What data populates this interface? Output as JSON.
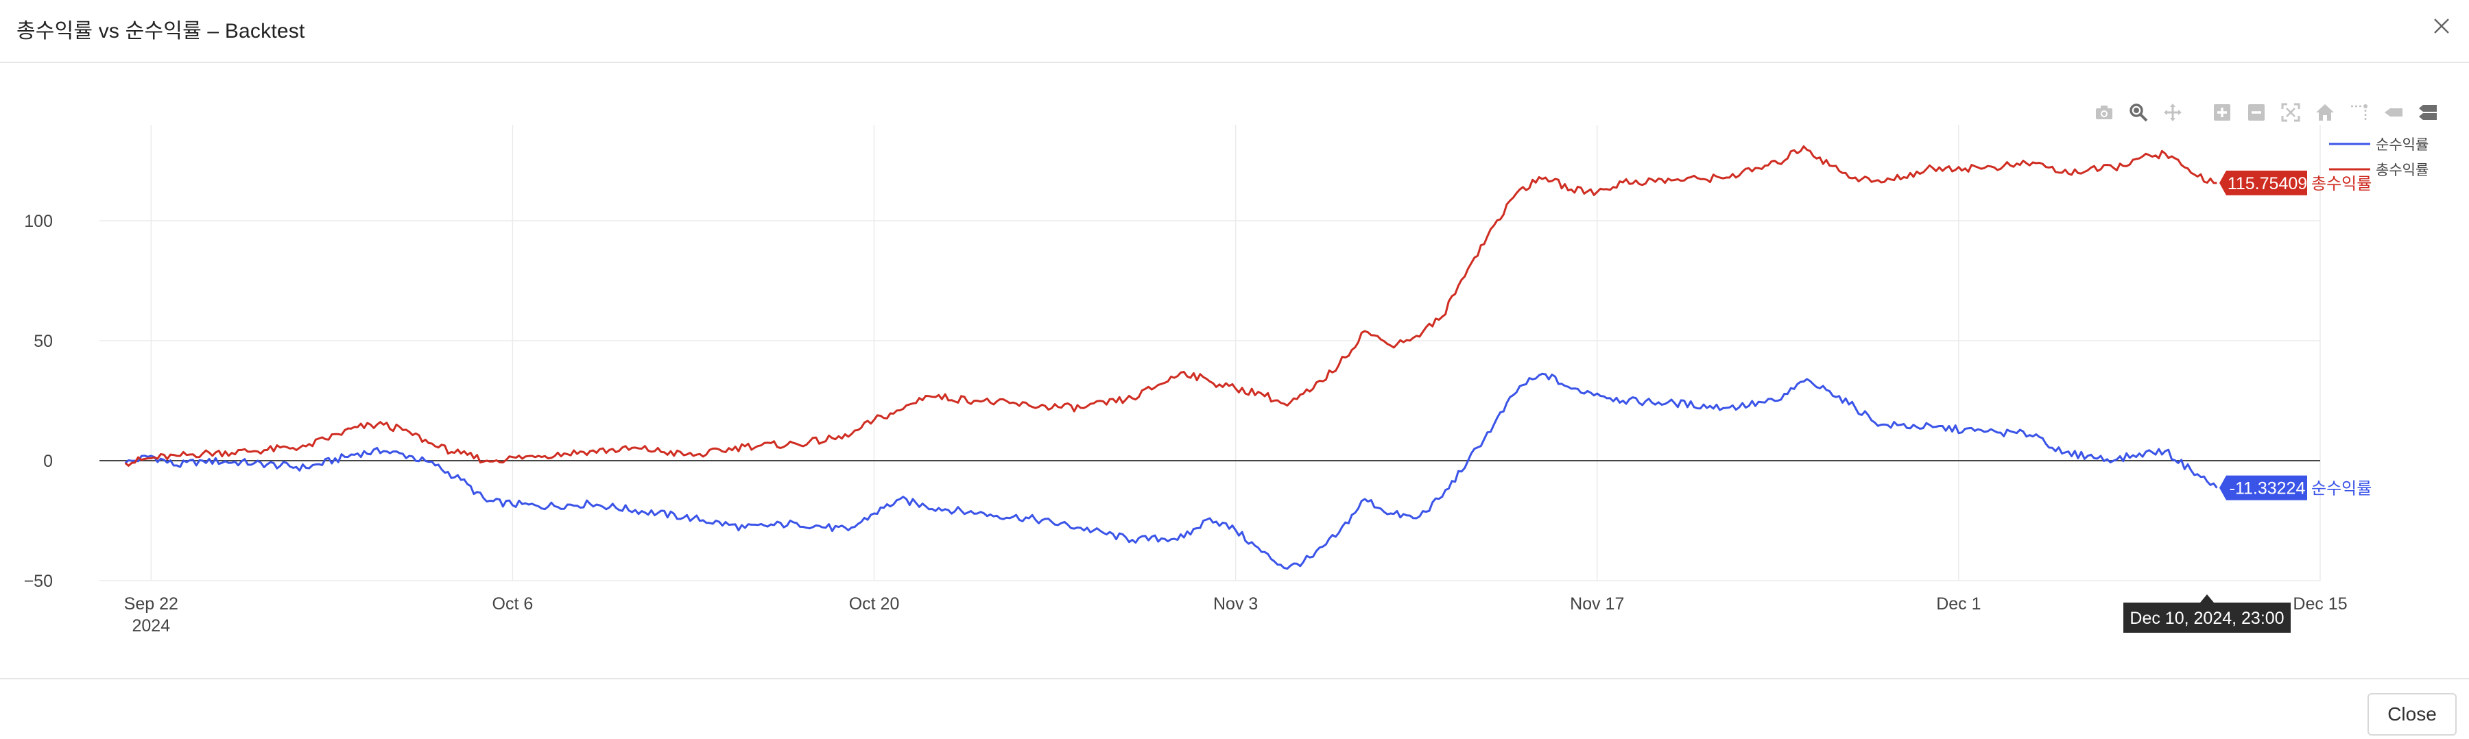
{
  "window": {
    "title": "총수익률 vs 순수익률  – Backtest",
    "close_label": "Close"
  },
  "modebar": {
    "buttons": [
      "camera-icon",
      "zoom-icon",
      "pan-icon",
      "zoom-in-icon",
      "zoom-out-icon",
      "autoscale-icon",
      "reset-axes-icon",
      "spike-lines-icon",
      "hover-closest-icon",
      "hover-compare-icon"
    ],
    "colors": {
      "inactive": "#c3c3c3",
      "active": "#6d6d6d"
    }
  },
  "hover": {
    "tooltip_text": "Dec 10, 2024, 23:00"
  },
  "chart_data": {
    "type": "line",
    "title": "",
    "xlabel": "",
    "ylabel": "",
    "x_range": [
      "2024-09-20",
      "2024-12-15"
    ],
    "ylim": [
      -50,
      140
    ],
    "grid": true,
    "zeroline": true,
    "legend_placement": "top-right",
    "x_ticks": [
      {
        "date": "2024-09-22",
        "label": "Sep 22",
        "sublabel": "2024"
      },
      {
        "date": "2024-10-06",
        "label": "Oct 6",
        "sublabel": ""
      },
      {
        "date": "2024-10-20",
        "label": "Oct 20",
        "sublabel": ""
      },
      {
        "date": "2024-11-03",
        "label": "Nov 3",
        "sublabel": ""
      },
      {
        "date": "2024-11-17",
        "label": "Nov 17",
        "sublabel": ""
      },
      {
        "date": "2024-12-01",
        "label": "Dec 1",
        "sublabel": ""
      },
      {
        "date": "2024-12-15",
        "label": "Dec 15",
        "sublabel": ""
      }
    ],
    "y_ticks": [
      {
        "value": 100,
        "label": "100"
      },
      {
        "value": 50,
        "label": "50"
      },
      {
        "value": 0,
        "label": "0"
      },
      {
        "value": -50,
        "label": "−50"
      }
    ],
    "series": [
      {
        "name": "순수익률",
        "color": "#3b54e8",
        "last_value_label": "-11.33224",
        "points": [
          [
            "2024-09-21",
            -1
          ],
          [
            "2024-09-22",
            2
          ],
          [
            "2024-09-23",
            -2
          ],
          [
            "2024-09-24",
            0
          ],
          [
            "2024-09-26",
            -1
          ],
          [
            "2024-09-28",
            -3
          ],
          [
            "2024-09-30",
            3
          ],
          [
            "2024-10-01",
            4
          ],
          [
            "2024-10-02",
            2
          ],
          [
            "2024-10-03",
            -2
          ],
          [
            "2024-10-04",
            -8
          ],
          [
            "2024-10-05",
            -17
          ],
          [
            "2024-10-07",
            -19
          ],
          [
            "2024-10-09",
            -18
          ],
          [
            "2024-10-11",
            -21
          ],
          [
            "2024-10-13",
            -24
          ],
          [
            "2024-10-15",
            -28
          ],
          [
            "2024-10-17",
            -26
          ],
          [
            "2024-10-19",
            -29
          ],
          [
            "2024-10-20",
            -22
          ],
          [
            "2024-10-21",
            -16
          ],
          [
            "2024-10-22",
            -19
          ],
          [
            "2024-10-24",
            -22
          ],
          [
            "2024-10-26",
            -24
          ],
          [
            "2024-10-28",
            -28
          ],
          [
            "2024-10-30",
            -33
          ],
          [
            "2024-11-01",
            -32
          ],
          [
            "2024-11-02",
            -24
          ],
          [
            "2024-11-03",
            -29
          ],
          [
            "2024-11-04",
            -38
          ],
          [
            "2024-11-05",
            -45
          ],
          [
            "2024-11-06",
            -40
          ],
          [
            "2024-11-07",
            -30
          ],
          [
            "2024-11-08",
            -16
          ],
          [
            "2024-11-09",
            -22
          ],
          [
            "2024-11-10",
            -24
          ],
          [
            "2024-11-11",
            -15
          ],
          [
            "2024-11-12",
            0
          ],
          [
            "2024-11-13",
            15
          ],
          [
            "2024-11-14",
            31
          ],
          [
            "2024-11-15",
            36
          ],
          [
            "2024-11-16",
            30
          ],
          [
            "2024-11-17",
            28
          ],
          [
            "2024-11-18",
            25
          ],
          [
            "2024-11-20",
            24
          ],
          [
            "2024-11-22",
            22
          ],
          [
            "2024-11-24",
            25
          ],
          [
            "2024-11-25",
            33
          ],
          [
            "2024-11-26",
            29
          ],
          [
            "2024-11-27",
            22
          ],
          [
            "2024-11-28",
            15
          ],
          [
            "2024-11-30",
            14
          ],
          [
            "2024-12-02",
            12
          ],
          [
            "2024-12-04",
            11
          ],
          [
            "2024-12-05",
            3
          ],
          [
            "2024-12-06",
            2
          ],
          [
            "2024-12-07",
            0
          ],
          [
            "2024-12-08",
            3
          ],
          [
            "2024-12-09",
            4
          ],
          [
            "2024-12-10",
            -4
          ],
          [
            "2024-12-11",
            -11.33224
          ]
        ]
      },
      {
        "name": "총수익률",
        "color": "#cf2d22",
        "last_value_label": "115.75409",
        "points": [
          [
            "2024-09-21",
            -1
          ],
          [
            "2024-09-22",
            1
          ],
          [
            "2024-09-23",
            2
          ],
          [
            "2024-09-24",
            3
          ],
          [
            "2024-09-26",
            4
          ],
          [
            "2024-09-28",
            6
          ],
          [
            "2024-09-30",
            14
          ],
          [
            "2024-10-01",
            15
          ],
          [
            "2024-10-02",
            12
          ],
          [
            "2024-10-03",
            6
          ],
          [
            "2024-10-04",
            3
          ],
          [
            "2024-10-05",
            0
          ],
          [
            "2024-10-07",
            2
          ],
          [
            "2024-10-09",
            4
          ],
          [
            "2024-10-11",
            5
          ],
          [
            "2024-10-13",
            2
          ],
          [
            "2024-10-15",
            6
          ],
          [
            "2024-10-17",
            7
          ],
          [
            "2024-10-19",
            10
          ],
          [
            "2024-10-20",
            17
          ],
          [
            "2024-10-21",
            21
          ],
          [
            "2024-10-22",
            27
          ],
          [
            "2024-10-24",
            25
          ],
          [
            "2024-10-26",
            23
          ],
          [
            "2024-10-28",
            22
          ],
          [
            "2024-10-30",
            26
          ],
          [
            "2024-11-01",
            37
          ],
          [
            "2024-11-02",
            33
          ],
          [
            "2024-11-03",
            30
          ],
          [
            "2024-11-04",
            28
          ],
          [
            "2024-11-05",
            23
          ],
          [
            "2024-11-06",
            30
          ],
          [
            "2024-11-07",
            40
          ],
          [
            "2024-11-08",
            54
          ],
          [
            "2024-11-09",
            48
          ],
          [
            "2024-11-10",
            52
          ],
          [
            "2024-11-11",
            60
          ],
          [
            "2024-11-12",
            80
          ],
          [
            "2024-11-13",
            98
          ],
          [
            "2024-11-14",
            113
          ],
          [
            "2024-11-15",
            118
          ],
          [
            "2024-11-16",
            113
          ],
          [
            "2024-11-17",
            112
          ],
          [
            "2024-11-18",
            116
          ],
          [
            "2024-11-20",
            117
          ],
          [
            "2024-11-22",
            118
          ],
          [
            "2024-11-24",
            124
          ],
          [
            "2024-11-25",
            131
          ],
          [
            "2024-11-26",
            123
          ],
          [
            "2024-11-27",
            118
          ],
          [
            "2024-11-28",
            116
          ],
          [
            "2024-11-30",
            122
          ],
          [
            "2024-12-02",
            122
          ],
          [
            "2024-12-04",
            124
          ],
          [
            "2024-12-05",
            120
          ],
          [
            "2024-12-06",
            121
          ],
          [
            "2024-12-07",
            122
          ],
          [
            "2024-12-08",
            126
          ],
          [
            "2024-12-09",
            128
          ],
          [
            "2024-12-10",
            120
          ],
          [
            "2024-12-11",
            115.75409
          ]
        ]
      }
    ]
  }
}
